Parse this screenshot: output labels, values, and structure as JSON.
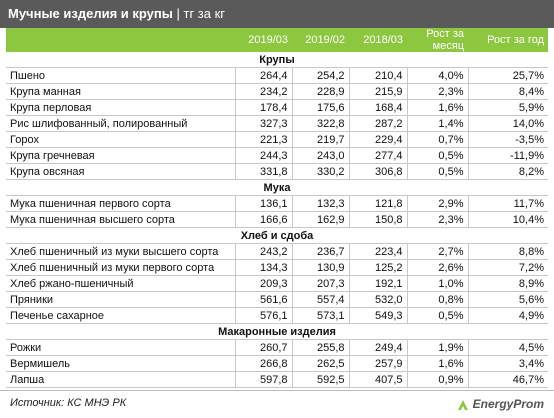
{
  "header": {
    "title": "Мучные изделия и крупы",
    "separator": "|",
    "unit": "тг за кг"
  },
  "table": {
    "columns": [
      "2019/03",
      "2019/02",
      "2018/03",
      "Рост за месяц",
      "Рост за год"
    ],
    "sections": [
      {
        "title": "Крупы",
        "rows": [
          [
            "Пшено",
            "264,4",
            "254,2",
            "210,4",
            "4,0%",
            "25,7%"
          ],
          [
            "Крупа манная",
            "234,2",
            "228,9",
            "215,9",
            "2,3%",
            "8,4%"
          ],
          [
            "Крупа перловая",
            "178,4",
            "175,6",
            "168,4",
            "1,6%",
            "5,9%"
          ],
          [
            "Рис шлифованный, полированный",
            "327,3",
            "322,8",
            "287,2",
            "1,4%",
            "14,0%"
          ],
          [
            "Горох",
            "221,3",
            "219,7",
            "229,4",
            "0,7%",
            "-3,5%"
          ],
          [
            "Крупа гречневая",
            "244,3",
            "243,0",
            "277,4",
            "0,5%",
            "-11,9%"
          ],
          [
            "Крупа овсяная",
            "331,8",
            "330,2",
            "306,8",
            "0,5%",
            "8,2%"
          ]
        ]
      },
      {
        "title": "Мука",
        "rows": [
          [
            "Мука пшеничная первого сорта",
            "136,1",
            "132,3",
            "121,8",
            "2,9%",
            "11,7%"
          ],
          [
            "Мука пшеничная высшего сорта",
            "166,6",
            "162,9",
            "150,8",
            "2,3%",
            "10,4%"
          ]
        ]
      },
      {
        "title": "Хлеб и сдоба",
        "rows": [
          [
            "Хлеб пшеничный из муки высшего сорта",
            "243,2",
            "236,7",
            "223,4",
            "2,7%",
            "8,8%"
          ],
          [
            "Хлеб пшеничный из муки первого сорта",
            "134,3",
            "130,9",
            "125,2",
            "2,6%",
            "7,2%"
          ],
          [
            "Хлеб ржано-пшеничный",
            "209,3",
            "207,3",
            "192,1",
            "1,0%",
            "8,9%"
          ],
          [
            "Пряники",
            "561,6",
            "557,4",
            "532,0",
            "0,8%",
            "5,6%"
          ],
          [
            "Печенье сахарное",
            "576,1",
            "573,1",
            "549,3",
            "0,5%",
            "4,9%"
          ]
        ]
      },
      {
        "title": "Макаронные изделия",
        "rows": [
          [
            "Рожки",
            "260,7",
            "255,8",
            "249,4",
            "1,9%",
            "4,5%"
          ],
          [
            "Вермишель",
            "266,8",
            "262,5",
            "257,9",
            "1,6%",
            "3,4%"
          ],
          [
            "Лапша",
            "597,8",
            "592,5",
            "407,5",
            "0,9%",
            "46,7%"
          ]
        ]
      }
    ]
  },
  "footer": {
    "source": "Источник: КС МНЭ РК",
    "logo": "EnergyProm"
  }
}
